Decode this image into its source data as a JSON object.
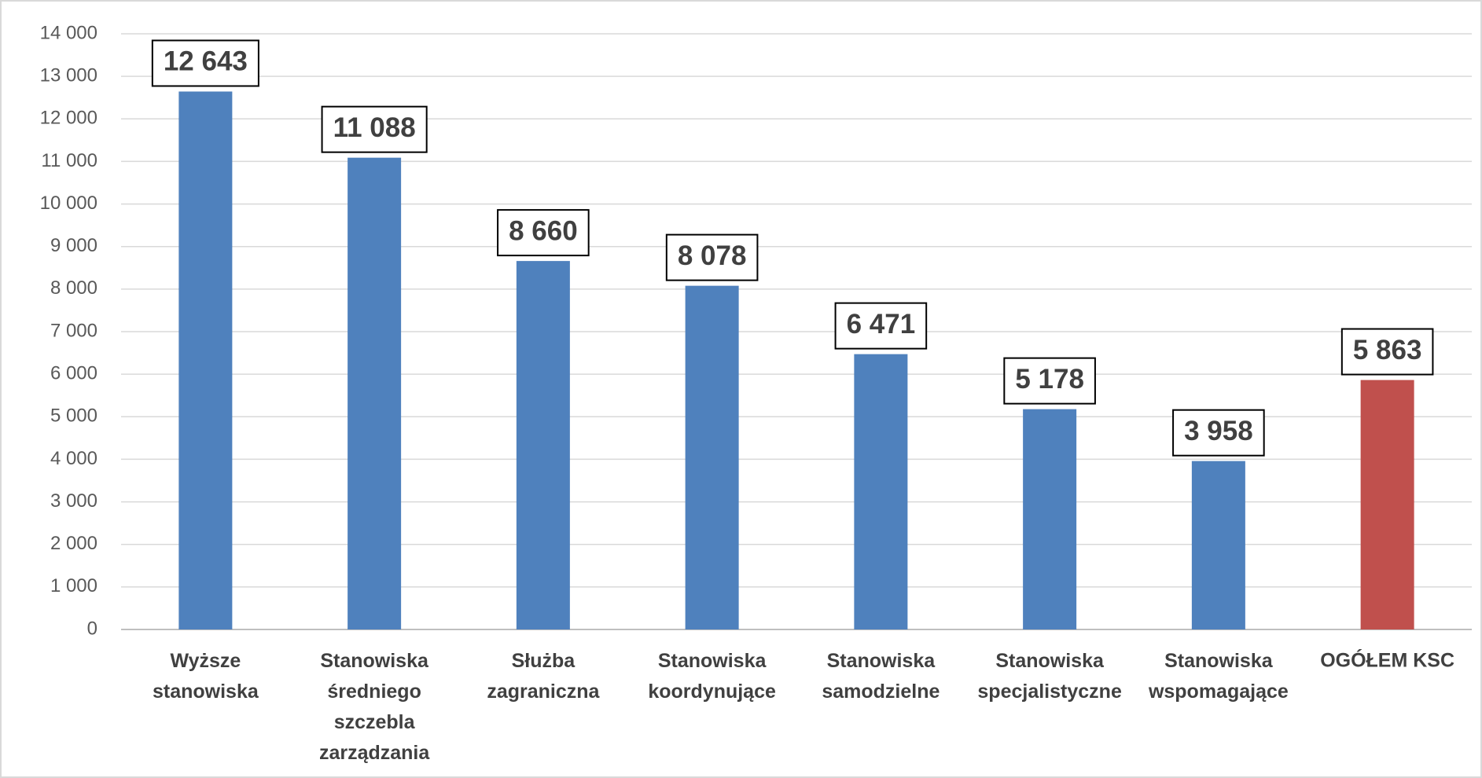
{
  "chart_data": {
    "type": "bar",
    "categories": [
      "Wyższe\nstanowiska",
      "Stanowiska\nśredniego\nszczebla\nzarządzania",
      "Służba\nzagraniczna",
      "Stanowiska\nkoordynujące",
      "Stanowiska\nsamodzielne",
      "Stanowiska\nspecjalistyczne",
      "Stanowiska\nwspomagające",
      "OGÓŁEM KSC"
    ],
    "values": [
      12643,
      11088,
      8660,
      8078,
      6471,
      5178,
      3958,
      5863
    ],
    "value_labels": [
      "12 643",
      "11 088",
      "8 660",
      "8 078",
      "6 471",
      "5 178",
      "3 958",
      "5 863"
    ],
    "colors": [
      "#4f81bd",
      "#4f81bd",
      "#4f81bd",
      "#4f81bd",
      "#4f81bd",
      "#4f81bd",
      "#4f81bd",
      "#c0504d"
    ],
    "ylim": [
      0,
      14000
    ],
    "yticks": [
      {
        "value": 0,
        "label": "0"
      },
      {
        "value": 1000,
        "label": "1 000"
      },
      {
        "value": 2000,
        "label": "2 000"
      },
      {
        "value": 3000,
        "label": "3 000"
      },
      {
        "value": 4000,
        "label": "4 000"
      },
      {
        "value": 5000,
        "label": "5 000"
      },
      {
        "value": 6000,
        "label": "6 000"
      },
      {
        "value": 7000,
        "label": "7 000"
      },
      {
        "value": 8000,
        "label": "8 000"
      },
      {
        "value": 9000,
        "label": "9 000"
      },
      {
        "value": 10000,
        "label": "10 000"
      },
      {
        "value": 11000,
        "label": "11 000"
      },
      {
        "value": 12000,
        "label": "12 000"
      },
      {
        "value": 13000,
        "label": "13 000"
      },
      {
        "value": 14000,
        "label": "14 000"
      }
    ],
    "grid": true
  }
}
